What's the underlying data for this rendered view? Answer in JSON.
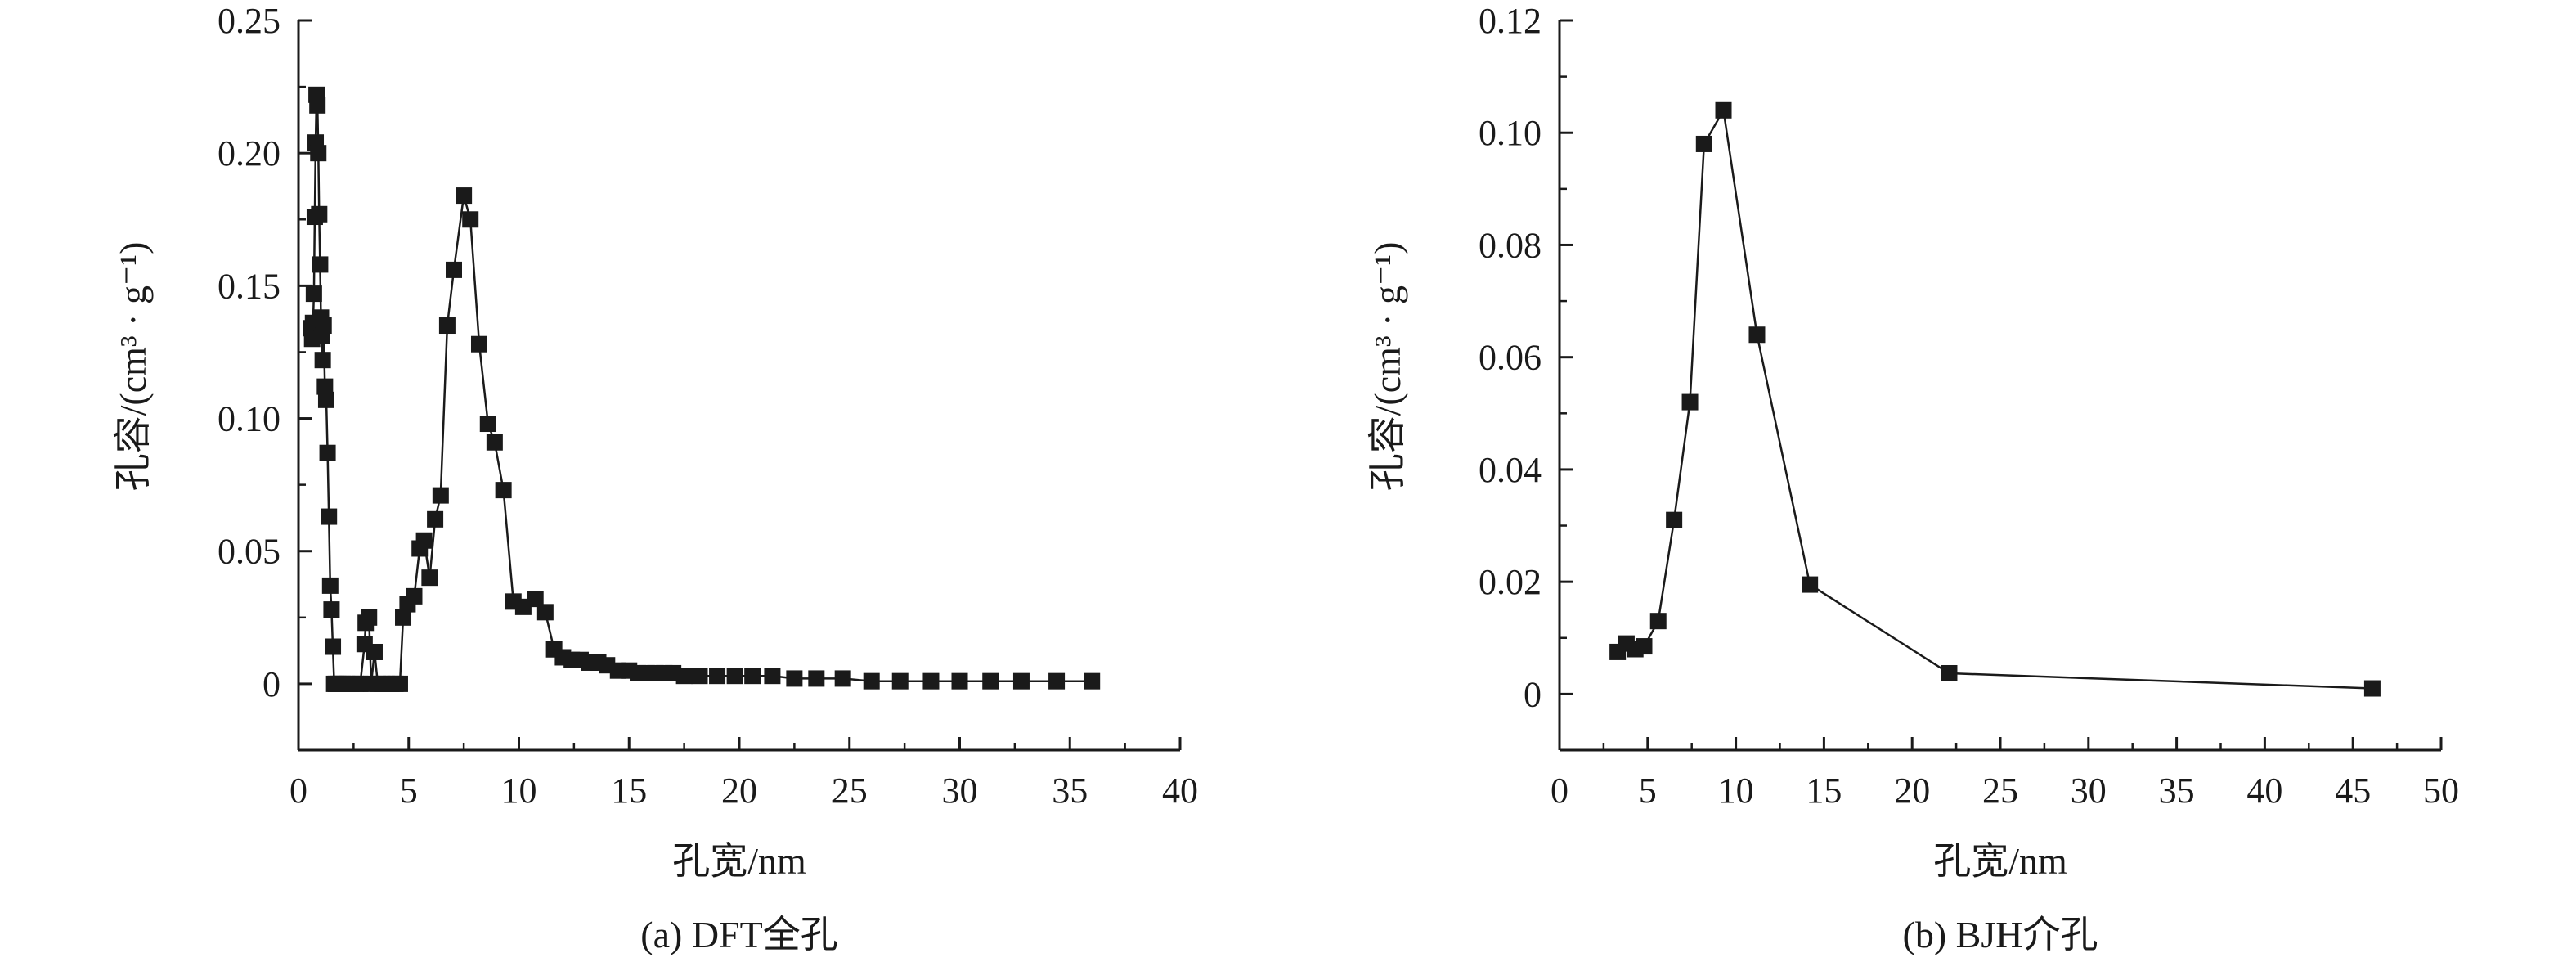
{
  "chart_data": [
    {
      "type": "scatter",
      "connected": true,
      "caption": "(a) DFT全孔",
      "xlabel": "孔宽/nm",
      "ylabel": "孔容/(cm³ · g⁻¹)",
      "xlim": [
        0,
        40
      ],
      "ylim": [
        -0.025,
        0.25
      ],
      "xticks": [
        0,
        5,
        10,
        15,
        20,
        25,
        30,
        35,
        40
      ],
      "xtick_labels": [
        "0",
        "5",
        "10",
        "15",
        "20",
        "25",
        "30",
        "35",
        "40"
      ],
      "yticks": [
        0,
        0.05,
        0.1,
        0.15,
        0.2,
        0.25
      ],
      "ytick_labels": [
        "0",
        "0.05",
        "0.10",
        "0.15",
        "0.20",
        "0.25"
      ],
      "grid": false,
      "series": [
        {
          "x": [
            0.58,
            0.62,
            0.66,
            0.7,
            0.74,
            0.78,
            0.82,
            0.86,
            0.9,
            0.94,
            0.98,
            1.02,
            1.06,
            1.1,
            1.14,
            1.2,
            1.26,
            1.32,
            1.38,
            1.44,
            1.5,
            1.56,
            1.62,
            1.7,
            1.8,
            1.9,
            2.0,
            2.2,
            2.4,
            2.6,
            2.8,
            3.0,
            3.05,
            3.2,
            3.3,
            3.45,
            3.6,
            3.8,
            4.0,
            4.2,
            4.4,
            4.6,
            4.75,
            4.95,
            5.25,
            5.5,
            5.7,
            5.95,
            6.2,
            6.45,
            6.75,
            7.05,
            7.5,
            7.8,
            8.2,
            8.6,
            8.9,
            9.3,
            9.75,
            10.2,
            10.75,
            11.2,
            11.6,
            12.0,
            12.4,
            12.8,
            13.2,
            13.6,
            14.0,
            14.5,
            15.0,
            15.4,
            15.8,
            16.2,
            16.6,
            17.0,
            17.5,
            18.2,
            19.0,
            19.8,
            20.6,
            21.5,
            22.5,
            23.5,
            24.7,
            26.0,
            27.3,
            28.7,
            30.0,
            31.4,
            32.8,
            34.4,
            36.0
          ],
          "y": [
            0.134,
            0.13,
            0.136,
            0.147,
            0.176,
            0.204,
            0.222,
            0.218,
            0.2,
            0.177,
            0.158,
            0.138,
            0.131,
            0.122,
            0.135,
            0.112,
            0.107,
            0.087,
            0.063,
            0.037,
            0.028,
            0.014,
            0.0,
            0.0,
            0.0,
            0.0,
            0.0,
            0.0,
            0.0,
            0.0,
            0.0,
            0.015,
            0.023,
            0.025,
            0.0,
            0.012,
            0.0,
            0.0,
            0.0,
            0.0,
            0.0,
            0.0,
            0.025,
            0.03,
            0.033,
            0.051,
            0.054,
            0.04,
            0.062,
            0.071,
            0.135,
            0.156,
            0.184,
            0.175,
            0.128,
            0.098,
            0.091,
            0.073,
            0.031,
            0.029,
            0.032,
            0.027,
            0.013,
            0.01,
            0.009,
            0.009,
            0.008,
            0.008,
            0.007,
            0.005,
            0.005,
            0.004,
            0.004,
            0.004,
            0.004,
            0.004,
            0.003,
            0.003,
            0.003,
            0.003,
            0.003,
            0.003,
            0.002,
            0.002,
            0.002,
            0.001,
            0.001,
            0.001,
            0.001,
            0.001,
            0.001,
            0.001,
            0.001
          ]
        }
      ]
    },
    {
      "type": "scatter",
      "connected": true,
      "caption": "(b) BJH介孔",
      "xlabel": "孔宽/nm",
      "ylabel": "孔容/(cm³ · g⁻¹)",
      "xlim": [
        0,
        50
      ],
      "ylim": [
        -0.01,
        0.12
      ],
      "xticks": [
        0,
        5,
        10,
        15,
        20,
        25,
        30,
        35,
        40,
        45,
        50
      ],
      "xtick_labels": [
        "0",
        "5",
        "10",
        "15",
        "20",
        "25",
        "30",
        "35",
        "40",
        "45",
        "50"
      ],
      "yticks": [
        0,
        0.02,
        0.04,
        0.06,
        0.08,
        0.1,
        0.12
      ],
      "ytick_labels": [
        "0",
        "0.02",
        "0.04",
        "0.06",
        "0.08",
        "0.10",
        "0.12"
      ],
      "grid": false,
      "series": [
        {
          "x": [
            3.3,
            3.8,
            4.3,
            4.8,
            5.6,
            6.5,
            7.4,
            8.2,
            9.3,
            11.2,
            14.2,
            22.1,
            46.1
          ],
          "y": [
            0.0075,
            0.009,
            0.008,
            0.0085,
            0.013,
            0.031,
            0.052,
            0.098,
            0.104,
            0.064,
            0.0195,
            0.0037,
            0.001
          ]
        }
      ]
    }
  ]
}
